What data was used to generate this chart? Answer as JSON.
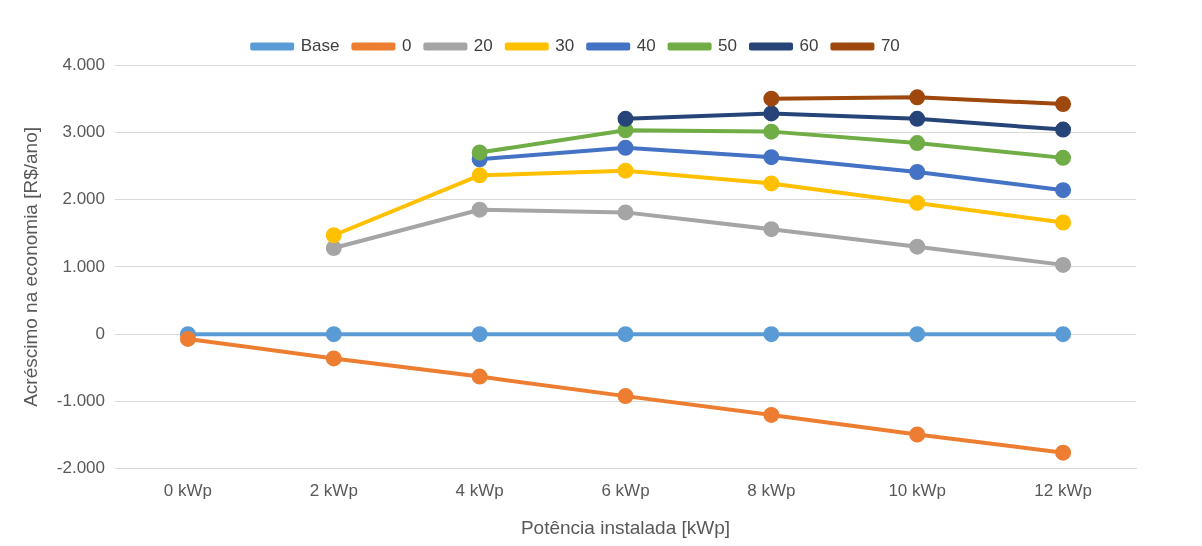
{
  "chart_data": {
    "type": "line",
    "xlabel": "Potência instalada [kWp]",
    "ylabel": "Acréscimo na economia [R$/ano]",
    "categories": [
      "0 kWp",
      "2 kWp",
      "4 kWp",
      "6 kWp",
      "8 kWp",
      "10 kWp",
      "12 kWp"
    ],
    "ylim": [
      -2000,
      4000
    ],
    "yticks": [
      {
        "value": -2000,
        "label": "-2.000"
      },
      {
        "value": -1000,
        "label": "-1.000"
      },
      0,
      {
        "value": 1000,
        "label": "1.000"
      },
      {
        "value": 2000,
        "label": "2.000"
      },
      {
        "value": 3000,
        "label": "3.000"
      },
      {
        "value": 4000,
        "label": "4.000"
      }
    ],
    "grid": "y",
    "legend": "top",
    "marker": "circle",
    "line_style": "solid",
    "series": [
      {
        "name": "Base",
        "color": "#5b9bd5",
        "values": [
          0,
          0,
          0,
          0,
          0,
          0,
          0
        ]
      },
      {
        "name": "0",
        "color": "#ed7d31",
        "values": [
          -70,
          -360,
          -630,
          -920,
          -1200,
          -1490,
          -1760
        ]
      },
      {
        "name": "20",
        "color": "#a5a5a5",
        "values": [
          null,
          1280,
          1850,
          1810,
          1560,
          1300,
          1030
        ]
      },
      {
        "name": "30",
        "color": "#ffc000",
        "values": [
          null,
          1470,
          2360,
          2430,
          2240,
          1950,
          1660
        ]
      },
      {
        "name": "40",
        "color": "#4472c4",
        "values": [
          null,
          null,
          2600,
          2770,
          2630,
          2410,
          2140
        ]
      },
      {
        "name": "50",
        "color": "#70ad47",
        "values": [
          null,
          null,
          2700,
          3030,
          3010,
          2840,
          2620
        ]
      },
      {
        "name": "60",
        "color": "#264478",
        "values": [
          null,
          null,
          null,
          3200,
          3280,
          3200,
          3040
        ]
      },
      {
        "name": "70",
        "color": "#9e480e",
        "values": [
          null,
          null,
          null,
          null,
          3500,
          3520,
          3420
        ]
      }
    ]
  }
}
